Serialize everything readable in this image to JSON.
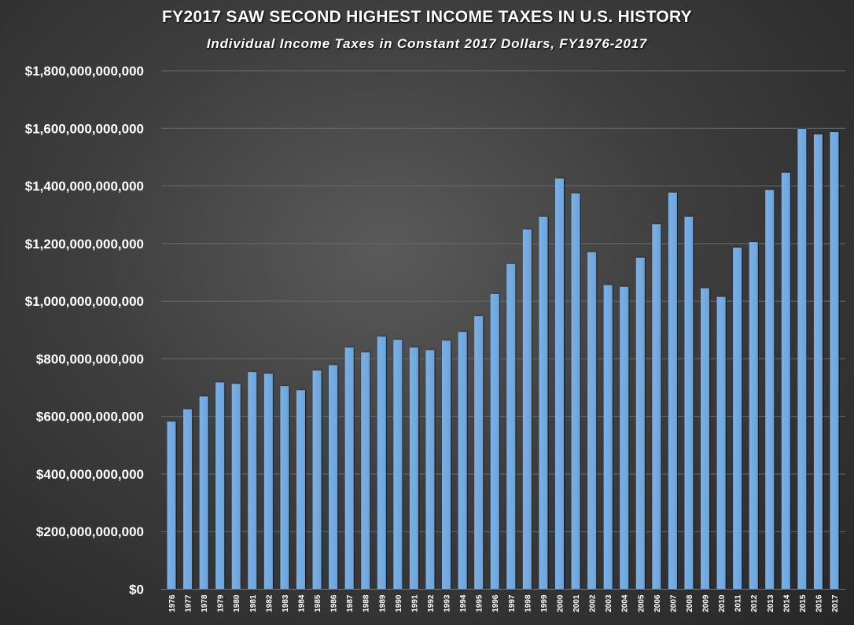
{
  "chart_data": {
    "type": "bar",
    "title": "FY2017 SAW SECOND HIGHEST INCOME TAXES IN U.S. HISTORY",
    "subtitle": "Individual  Income  Taxes  in  Constant  2017  Dollars,  FY1976-2017",
    "xlabel": "",
    "ylabel": "",
    "ylim": [
      0,
      1800000000000
    ],
    "yticks": [
      0,
      200000000000,
      400000000000,
      600000000000,
      800000000000,
      1000000000000,
      1200000000000,
      1400000000000,
      1600000000000,
      1800000000000
    ],
    "ytick_labels": [
      "$0",
      "$200,000,000,000",
      "$400,000,000,000",
      "$600,000,000,000",
      "$800,000,000,000",
      "$1,000,000,000,000",
      "$1,200,000,000,000",
      "$1,400,000,000,000",
      "$1,600,000,000,000",
      "$1,800,000,000,000"
    ],
    "grid": true,
    "bar_color": "#6aa4dd",
    "categories": [
      "1976",
      "1977",
      "1978",
      "1979",
      "1980",
      "1981",
      "1982",
      "1983",
      "1984",
      "1985",
      "1986",
      "1987",
      "1988",
      "1989",
      "1990",
      "1991",
      "1992",
      "1993",
      "1994",
      "1995",
      "1996",
      "1997",
      "1998",
      "1999",
      "2000",
      "2001",
      "2002",
      "2003",
      "2004",
      "2005",
      "2006",
      "2007",
      "2008",
      "2009",
      "2010",
      "2011",
      "2012",
      "2013",
      "2014",
      "2015",
      "2016",
      "2017"
    ],
    "values": [
      582000000000,
      625000000000,
      669000000000,
      718000000000,
      713000000000,
      754000000000,
      748000000000,
      705000000000,
      691000000000,
      759000000000,
      778000000000,
      839000000000,
      822000000000,
      877000000000,
      866000000000,
      839000000000,
      830000000000,
      863000000000,
      893000000000,
      948000000000,
      1025000000000,
      1129000000000,
      1249000000000,
      1293000000000,
      1426000000000,
      1374000000000,
      1170000000000,
      1056000000000,
      1050000000000,
      1151000000000,
      1267000000000,
      1377000000000,
      1293000000000,
      1045000000000,
      1015000000000,
      1186000000000,
      1205000000000,
      1386000000000,
      1446000000000,
      1598000000000,
      1579000000000,
      1587000000000
    ]
  }
}
